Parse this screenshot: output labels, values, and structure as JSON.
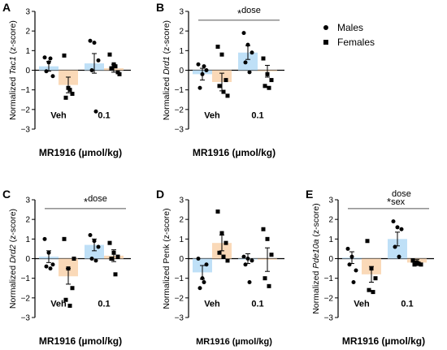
{
  "legend": {
    "males": "Males",
    "females": "Females"
  },
  "colors": {
    "male_bar": "#bfe0f7",
    "female_bar": "#fad9b8",
    "axis": "#000000"
  },
  "chart_data": [
    {
      "id": "A",
      "type": "bar",
      "letter": "A",
      "ylabel_pre": "Normalized ",
      "ylabel_gene": "Tac1",
      "ylabel_post": " (z-score)",
      "xlabel": "MR1916 (µmol/kg)",
      "categories": [
        "Veh",
        "0.1"
      ],
      "ylim": [
        -3,
        3
      ],
      "yticks": [
        -3,
        -2,
        -1,
        0,
        1,
        2,
        3
      ],
      "series": [
        {
          "name": "Males",
          "marker": "circle",
          "means": [
            0.2,
            0.35
          ],
          "sem": [
            0.25,
            0.5
          ],
          "points": [
            [
              0.65,
              0.4,
              -0.3,
              -0.05,
              0.6
            ],
            [
              1.5,
              1.4,
              0.5,
              0.0,
              -2.1
            ]
          ]
        },
        {
          "name": "Females",
          "marker": "square",
          "means": [
            -0.75,
            0.1
          ],
          "sem": [
            0.4,
            0.2
          ],
          "points": [
            [
              0.75,
              -0.9,
              -1.2,
              -1.4,
              -1.0
            ],
            [
              0.8,
              0.3,
              -0.1,
              0.1,
              0.2,
              -0.2
            ]
          ]
        }
      ],
      "significance": null
    },
    {
      "id": "B",
      "type": "bar",
      "letter": "B",
      "ylabel_pre": "Normalized ",
      "ylabel_gene": "Drd1",
      "ylabel_post": " (z-score)",
      "xlabel": "MR1916 (µmol/kg)",
      "categories": [
        "Veh",
        "0.1"
      ],
      "ylim": [
        -3,
        3
      ],
      "yticks": [
        -3,
        -2,
        -1,
        0,
        1,
        2,
        3
      ],
      "series": [
        {
          "name": "Males",
          "marker": "circle",
          "means": [
            -0.2,
            0.9
          ],
          "sem": [
            0.3,
            0.35
          ],
          "points": [
            [
              0.3,
              -0.2,
              0.0,
              -0.9,
              0.2
            ],
            [
              1.9,
              1.3,
              0.9,
              0.4,
              -0.1
            ]
          ]
        },
        {
          "name": "Females",
          "marker": "square",
          "means": [
            -0.6,
            -0.05
          ],
          "sem": [
            0.45,
            0.3
          ],
          "points": [
            [
              1.2,
              0.8,
              -0.5,
              -0.8,
              -1.1,
              -1.3
            ],
            [
              0.6,
              -0.2,
              -0.5,
              -0.8,
              -0.9
            ]
          ]
        }
      ],
      "significance": {
        "symbol": "*",
        "label": "dose",
        "label2": ""
      }
    },
    {
      "id": "C",
      "type": "bar",
      "letter": "C",
      "ylabel_pre": "Normalized ",
      "ylabel_gene": "Drd2",
      "ylabel_post": " (z-score)",
      "xlabel": "MR1916 (µmol/kg)",
      "categories": [
        "Veh",
        "0.1"
      ],
      "ylim": [
        -3,
        3
      ],
      "yticks": [
        -3,
        -2,
        -1,
        0,
        1,
        2,
        3
      ],
      "series": [
        {
          "name": "Males",
          "marker": "circle",
          "means": [
            0.1,
            0.7
          ],
          "sem": [
            0.3,
            0.3
          ],
          "points": [
            [
              1.0,
              0.3,
              -0.3,
              -0.4,
              -0.5
            ],
            [
              1.2,
              0.9,
              0.6,
              0.0,
              -0.1
            ]
          ]
        },
        {
          "name": "Females",
          "marker": "square",
          "means": [
            -0.9,
            0.15
          ],
          "sem": [
            0.4,
            0.3
          ],
          "points": [
            [
              1.0,
              -0.5,
              -1.5,
              -2.1,
              -2.4,
              0.0
            ],
            [
              0.8,
              0.3,
              0.1,
              0.0,
              -0.8
            ]
          ]
        }
      ],
      "significance": {
        "symbol": "*",
        "label": "dose",
        "label2": ""
      }
    },
    {
      "id": "D",
      "type": "bar",
      "letter": "D",
      "ylabel_pre": "Normalized Penk",
      "ylabel_gene": "",
      "ylabel_post": " (z-score)",
      "xlabel": "MR1916 (µmol/kg)",
      "categories": [
        "Veh",
        "0.1"
      ],
      "ylim": [
        -3,
        3
      ],
      "yticks": [
        -3,
        -2,
        -1,
        0,
        1,
        2,
        3
      ],
      "series": [
        {
          "name": "Males",
          "marker": "circle",
          "means": [
            -0.7,
            0.0
          ],
          "sem": [
            0.35,
            0.25
          ],
          "points": [
            [
              0.0,
              -1.0,
              -0.3,
              -1.5,
              -1.2
            ],
            [
              0.1,
              0.0,
              -0.1,
              -0.3,
              -1.2
            ]
          ]
        },
        {
          "name": "Females",
          "marker": "square",
          "means": [
            0.8,
            -0.05
          ],
          "sem": [
            0.4,
            0.6
          ],
          "points": [
            [
              2.4,
              1.3,
              0.8,
              0.3,
              0.1,
              -0.1
            ],
            [
              1.5,
              1.0,
              0.2,
              -1.0,
              -1.4
            ]
          ]
        }
      ],
      "significance": null
    },
    {
      "id": "E",
      "type": "bar",
      "letter": "E",
      "ylabel_pre": "Normalized ",
      "ylabel_gene": "Pde10a",
      "ylabel_post": " (z-score)",
      "xlabel": "MR1916 (µmol/kg)",
      "categories": [
        "Veh",
        "0.1"
      ],
      "ylim": [
        -3,
        3
      ],
      "yticks": [
        -3,
        -2,
        -1,
        0,
        1,
        2,
        3
      ],
      "series": [
        {
          "name": "Males",
          "marker": "circle",
          "means": [
            0.05,
            1.0
          ],
          "sem": [
            0.3,
            0.35
          ],
          "points": [
            [
              0.5,
              0.1,
              -0.6,
              -0.3,
              -1.2
            ],
            [
              1.9,
              1.6,
              1.5,
              0.6,
              0.1
            ]
          ]
        },
        {
          "name": "Females",
          "marker": "square",
          "means": [
            -0.8,
            -0.2
          ],
          "sem": [
            0.4,
            0.15
          ],
          "points": [
            [
              0.9,
              -0.5,
              -1.0,
              -1.6,
              -1.7
            ],
            [
              -0.1,
              -0.2,
              -0.3,
              -0.3,
              -0.25
            ]
          ]
        }
      ],
      "significance": {
        "symbol": "*",
        "label": "dose",
        "label2": "sex"
      }
    }
  ]
}
